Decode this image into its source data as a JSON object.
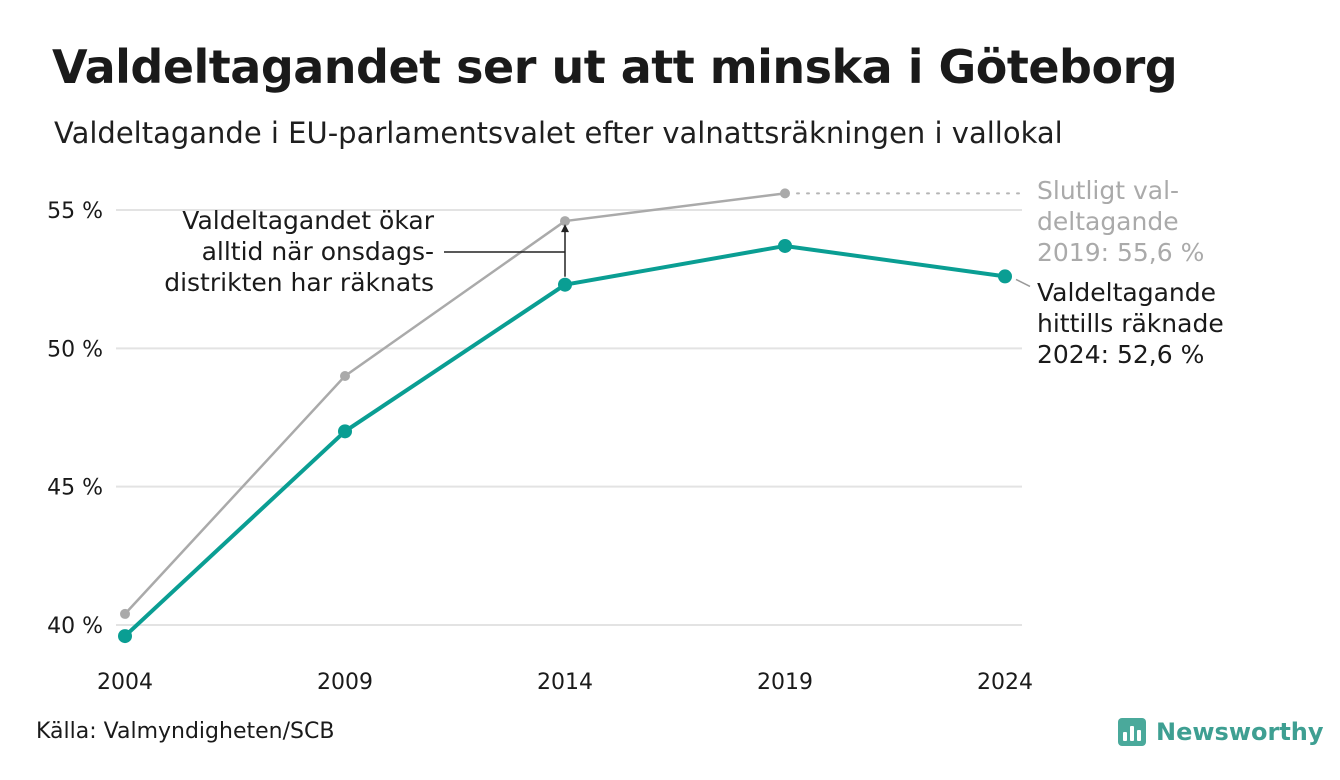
{
  "header": {
    "title": "Valdeltagandet ser ut att minska i Göteborg",
    "subtitle": "Valdeltagande i EU-parlamentsvalet efter valnattsräkningen i vallokal"
  },
  "chart_data": {
    "type": "line",
    "x": [
      "2004",
      "2009",
      "2014",
      "2019",
      "2024"
    ],
    "ylim": [
      39.5,
      56.5
    ],
    "yticks": [
      40,
      45,
      50,
      55
    ],
    "ytick_labels": [
      "40 %",
      "45 %",
      "50 %",
      "55 %"
    ],
    "grid": true,
    "series": [
      {
        "key": "final",
        "color": "#aaaaaa",
        "values": [
          40.4,
          49.0,
          54.6,
          55.6,
          null
        ]
      },
      {
        "key": "counted",
        "color": "#0a9e93",
        "values": [
          39.6,
          47.0,
          52.3,
          53.7,
          52.6
        ]
      }
    ],
    "annotations": {
      "increase": [
        "Valdeltagandet ökar",
        "alltid när onsdags-",
        "distrikten har räknats"
      ],
      "final_2019": [
        "Slutligt val-",
        "deltagande",
        "2019: 55,6 %"
      ],
      "counted_2024": [
        "Valdeltagande",
        "hittills räknade",
        "2024: 52,6 %"
      ]
    }
  },
  "footer": {
    "source": "Källa: Valmyndigheten/SCB",
    "logo_text": "Newsworthy",
    "logo_icon": "newsworthy-bar-chart-icon"
  }
}
